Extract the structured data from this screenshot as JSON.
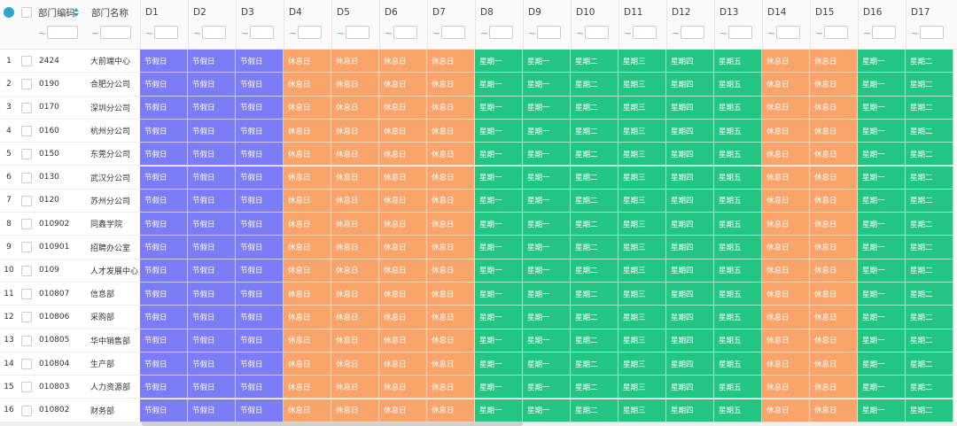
{
  "table": {
    "header": {
      "code": "部门编码",
      "name": "部门名称"
    },
    "filter_separator": "~",
    "columns": [
      {
        "label": "D1",
        "color": "#7b7cf6"
      },
      {
        "label": "D2",
        "color": "#7b7cf6"
      },
      {
        "label": "D3",
        "color": "#7b7cf6"
      },
      {
        "label": "D4",
        "color": "#f9a46b"
      },
      {
        "label": "D5",
        "color": "#f9a46b"
      },
      {
        "label": "D6",
        "color": "#f9a46b"
      },
      {
        "label": "D7",
        "color": "#f9a46b"
      },
      {
        "label": "D8",
        "color": "#23c583"
      },
      {
        "label": "D9",
        "color": "#23c583"
      },
      {
        "label": "D10",
        "color": "#23c583"
      },
      {
        "label": "D11",
        "color": "#23c583"
      },
      {
        "label": "D12",
        "color": "#23c583"
      },
      {
        "label": "D13",
        "color": "#23c583"
      },
      {
        "label": "D14",
        "color": "#f9a46b"
      },
      {
        "label": "D15",
        "color": "#f9a46b"
      },
      {
        "label": "D16",
        "color": "#23c583"
      },
      {
        "label": "D17",
        "color": "#23c583"
      }
    ],
    "rows": [
      {
        "no": 1,
        "code": "2424",
        "name": "大前端中心",
        "days": [
          "节假日",
          "节假日",
          "节假日",
          "休息日",
          "休息日",
          "休息日",
          "休息日",
          "星期一",
          "星期一",
          "星期二",
          "星期三",
          "星期四",
          "星期五",
          "休息日",
          "休息日",
          "星期一",
          "星期二"
        ]
      },
      {
        "no": 2,
        "code": "0190",
        "name": "合肥分公司",
        "days": [
          "节假日",
          "节假日",
          "节假日",
          "休息日",
          "休息日",
          "休息日",
          "休息日",
          "星期一",
          "星期一",
          "星期二",
          "星期三",
          "星期四",
          "星期五",
          "休息日",
          "休息日",
          "星期一",
          "星期二"
        ]
      },
      {
        "no": 3,
        "code": "0170",
        "name": "深圳分公司",
        "days": [
          "节假日",
          "节假日",
          "节假日",
          "休息日",
          "休息日",
          "休息日",
          "休息日",
          "星期一",
          "星期一",
          "星期二",
          "星期三",
          "星期四",
          "星期五",
          "休息日",
          "休息日",
          "星期一",
          "星期二"
        ]
      },
      {
        "no": 4,
        "code": "0160",
        "name": "杭州分公司",
        "days": [
          "节假日",
          "节假日",
          "节假日",
          "休息日",
          "休息日",
          "休息日",
          "休息日",
          "星期一",
          "星期一",
          "星期二",
          "星期三",
          "星期四",
          "星期五",
          "休息日",
          "休息日",
          "星期一",
          "星期二"
        ]
      },
      {
        "no": 5,
        "code": "0150",
        "name": "东莞分公司",
        "days": [
          "节假日",
          "节假日",
          "节假日",
          "休息日",
          "休息日",
          "休息日",
          "休息日",
          "星期一",
          "星期一",
          "星期二",
          "星期三",
          "星期四",
          "星期五",
          "休息日",
          "休息日",
          "星期一",
          "星期二"
        ]
      },
      {
        "no": 6,
        "code": "0130",
        "name": "武汉分公司",
        "days": [
          "节假日",
          "节假日",
          "节假日",
          "休息日",
          "休息日",
          "休息日",
          "休息日",
          "星期一",
          "星期一",
          "星期二",
          "星期三",
          "星期四",
          "星期五",
          "休息日",
          "休息日",
          "星期一",
          "星期二"
        ]
      },
      {
        "no": 7,
        "code": "0120",
        "name": "苏州分公司",
        "days": [
          "节假日",
          "节假日",
          "节假日",
          "休息日",
          "休息日",
          "休息日",
          "休息日",
          "星期一",
          "星期一",
          "星期二",
          "星期三",
          "星期四",
          "星期五",
          "休息日",
          "休息日",
          "星期一",
          "星期二"
        ]
      },
      {
        "no": 8,
        "code": "010902",
        "name": "同鑫学院",
        "days": [
          "节假日",
          "节假日",
          "节假日",
          "休息日",
          "休息日",
          "休息日",
          "休息日",
          "星期一",
          "星期一",
          "星期二",
          "星期三",
          "星期四",
          "星期五",
          "休息日",
          "休息日",
          "星期一",
          "星期二"
        ]
      },
      {
        "no": 9,
        "code": "010901",
        "name": "招聘办公室",
        "days": [
          "节假日",
          "节假日",
          "节假日",
          "休息日",
          "休息日",
          "休息日",
          "休息日",
          "星期一",
          "星期一",
          "星期二",
          "星期三",
          "星期四",
          "星期五",
          "休息日",
          "休息日",
          "星期一",
          "星期二"
        ]
      },
      {
        "no": 10,
        "code": "0109",
        "name": "人才发展中心",
        "days": [
          "节假日",
          "节假日",
          "节假日",
          "休息日",
          "休息日",
          "休息日",
          "休息日",
          "星期一",
          "星期一",
          "星期二",
          "星期三",
          "星期四",
          "星期五",
          "休息日",
          "休息日",
          "星期一",
          "星期二"
        ]
      },
      {
        "no": 11,
        "code": "010807",
        "name": "信息部",
        "days": [
          "节假日",
          "节假日",
          "节假日",
          "休息日",
          "休息日",
          "休息日",
          "休息日",
          "星期一",
          "星期一",
          "星期二",
          "星期三",
          "星期四",
          "星期五",
          "休息日",
          "休息日",
          "星期一",
          "星期二"
        ]
      },
      {
        "no": 12,
        "code": "010806",
        "name": "采购部",
        "days": [
          "节假日",
          "节假日",
          "节假日",
          "休息日",
          "休息日",
          "休息日",
          "休息日",
          "星期一",
          "星期一",
          "星期二",
          "星期三",
          "星期四",
          "星期五",
          "休息日",
          "休息日",
          "星期一",
          "星期二"
        ]
      },
      {
        "no": 13,
        "code": "010805",
        "name": "华中销售部",
        "days": [
          "节假日",
          "节假日",
          "节假日",
          "休息日",
          "休息日",
          "休息日",
          "休息日",
          "星期一",
          "星期一",
          "星期二",
          "星期三",
          "星期四",
          "星期五",
          "休息日",
          "休息日",
          "星期一",
          "星期二"
        ]
      },
      {
        "no": 14,
        "code": "010804",
        "name": "生产部",
        "days": [
          "节假日",
          "节假日",
          "节假日",
          "休息日",
          "休息日",
          "休息日",
          "休息日",
          "星期一",
          "星期一",
          "星期二",
          "星期三",
          "星期四",
          "星期五",
          "休息日",
          "休息日",
          "星期一",
          "星期二"
        ]
      },
      {
        "no": 15,
        "code": "010803",
        "name": "人力资源部",
        "days": [
          "节假日",
          "节假日",
          "节假日",
          "休息日",
          "休息日",
          "休息日",
          "休息日",
          "星期一",
          "星期一",
          "星期二",
          "星期三",
          "星期四",
          "星期五",
          "休息日",
          "休息日",
          "星期一",
          "星期二"
        ]
      },
      {
        "no": 16,
        "code": "010802",
        "name": "财务部",
        "days": [
          "节假日",
          "节假日",
          "节假日",
          "休息日",
          "休息日",
          "休息日",
          "休息日",
          "星期一",
          "星期一",
          "星期二",
          "星期三",
          "星期四",
          "星期五",
          "休息日",
          "休息日",
          "星期一",
          "星期二"
        ]
      }
    ]
  }
}
